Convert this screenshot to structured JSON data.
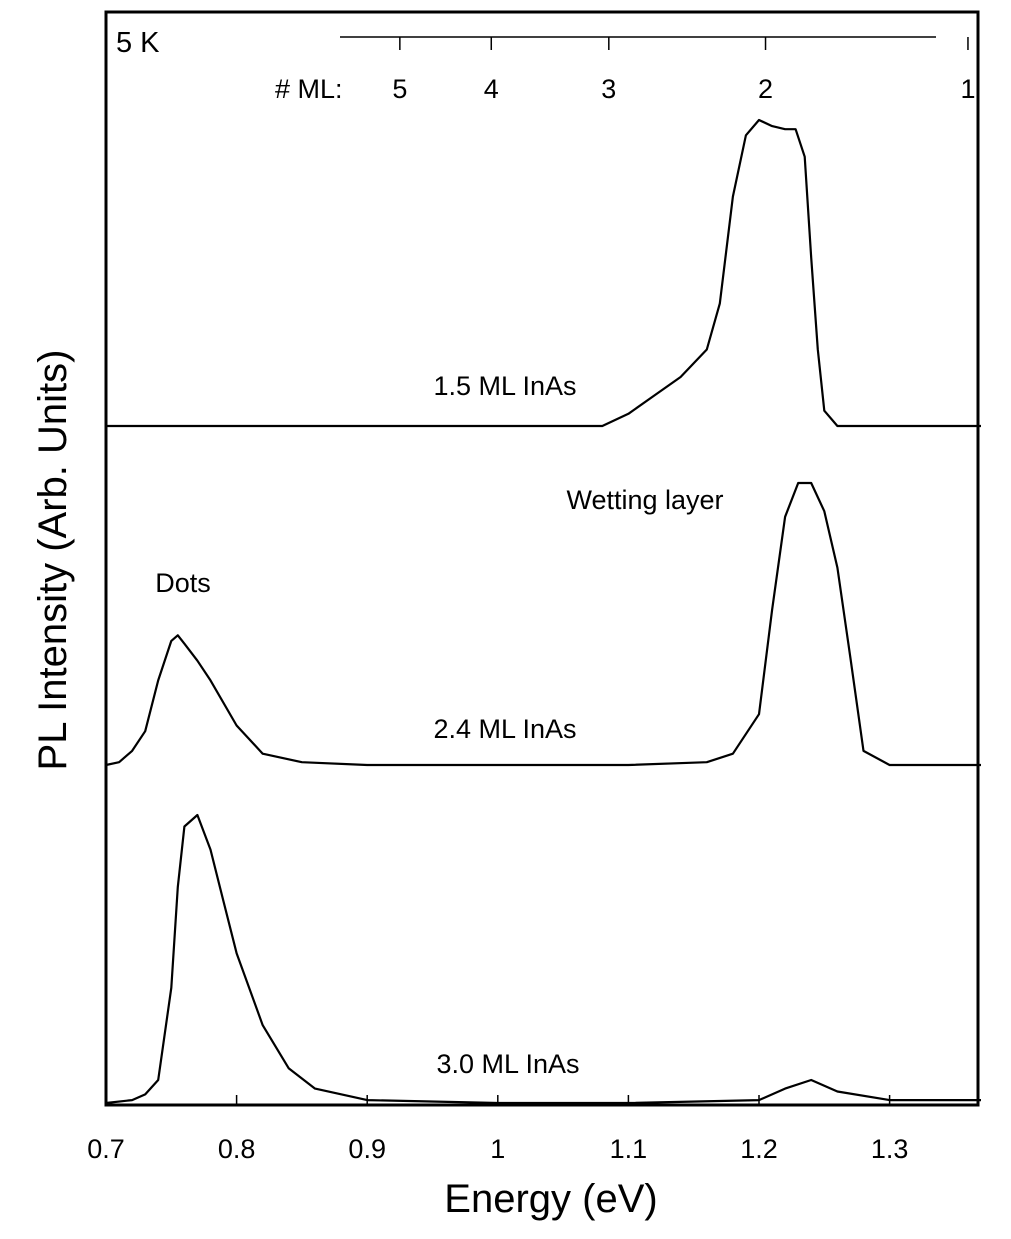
{
  "chart_data": {
    "type": "line",
    "title": "",
    "xlabel": "Energy (eV)",
    "ylabel": "PL Intensity (Arb. Units)",
    "xlim": [
      0.7,
      1.37
    ],
    "x_ticks": [
      "0.7",
      "0.8",
      "0.9",
      "1",
      "1.1",
      "1.2",
      "1.3"
    ],
    "y_ticks": [],
    "grid": false,
    "legend": "none",
    "temperature_label": "5 K",
    "top_axis": {
      "label": "# ML:",
      "ticks": [
        {
          "label": "5",
          "energy": 0.925
        },
        {
          "label": "4",
          "energy": 0.995
        },
        {
          "label": "3",
          "energy": 1.085
        },
        {
          "label": "2",
          "energy": 1.205
        },
        {
          "label": "1",
          "energy": 1.36
        }
      ]
    },
    "annotations": [
      {
        "text": "Dots",
        "x": 0.76
      },
      {
        "text": "Wetting layer",
        "x": 1.2
      }
    ],
    "series": [
      {
        "name": "1.5 ML InAs",
        "x": [
          0.7,
          0.8,
          0.9,
          1.0,
          1.05,
          1.08,
          1.1,
          1.12,
          1.14,
          1.16,
          1.17,
          1.18,
          1.19,
          1.2,
          1.21,
          1.22,
          1.228,
          1.235,
          1.24,
          1.245,
          1.25,
          1.26,
          1.3,
          1.37
        ],
        "y": [
          0.0,
          0.0,
          0.0,
          0.0,
          0.0,
          0.0,
          0.04,
          0.1,
          0.16,
          0.25,
          0.4,
          0.75,
          0.95,
          1.0,
          0.98,
          0.97,
          0.97,
          0.88,
          0.55,
          0.25,
          0.05,
          0.0,
          0.0,
          0.0
        ]
      },
      {
        "name": "2.4 ML InAs",
        "x": [
          0.7,
          0.71,
          0.72,
          0.73,
          0.74,
          0.75,
          0.755,
          0.76,
          0.77,
          0.78,
          0.8,
          0.82,
          0.85,
          0.9,
          1.0,
          1.1,
          1.16,
          1.18,
          1.2,
          1.21,
          1.22,
          1.23,
          1.24,
          1.25,
          1.26,
          1.27,
          1.28,
          1.3,
          1.37
        ],
        "y": [
          0.0,
          0.01,
          0.05,
          0.12,
          0.3,
          0.44,
          0.46,
          0.43,
          0.37,
          0.3,
          0.14,
          0.04,
          0.01,
          0.0,
          0.0,
          0.0,
          0.01,
          0.04,
          0.18,
          0.55,
          0.88,
          1.0,
          1.0,
          0.9,
          0.7,
          0.38,
          0.05,
          0.0,
          0.0
        ]
      },
      {
        "name": "3.0 ML InAs",
        "x": [
          0.7,
          0.72,
          0.73,
          0.74,
          0.75,
          0.755,
          0.76,
          0.77,
          0.78,
          0.79,
          0.8,
          0.82,
          0.84,
          0.86,
          0.9,
          1.0,
          1.1,
          1.2,
          1.22,
          1.24,
          1.26,
          1.3,
          1.37
        ],
        "y": [
          0.0,
          0.01,
          0.03,
          0.08,
          0.4,
          0.75,
          0.96,
          1.0,
          0.88,
          0.7,
          0.52,
          0.27,
          0.12,
          0.05,
          0.01,
          0.0,
          0.0,
          0.01,
          0.05,
          0.08,
          0.04,
          0.01,
          0.01
        ]
      }
    ]
  }
}
